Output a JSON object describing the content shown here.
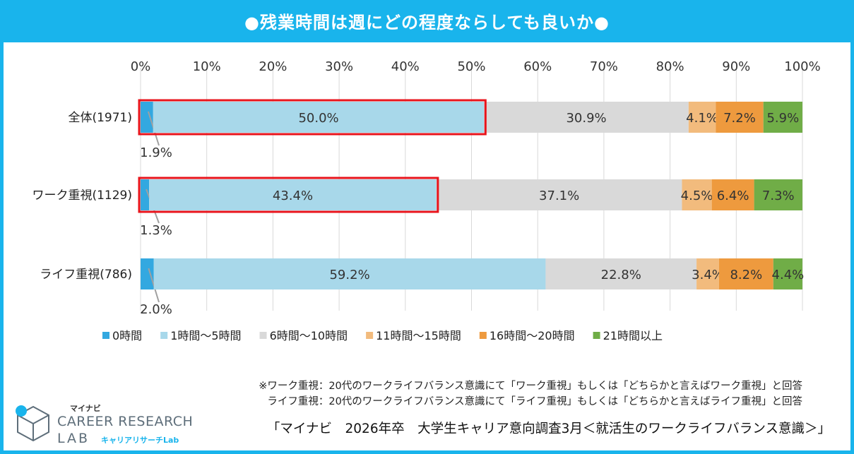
{
  "title": "●残業時間は週にどの程度ならしても良いか●",
  "chart_data": {
    "type": "bar",
    "orientation": "horizontal",
    "stacked": "percent",
    "categories": [
      "全体(1971)",
      "ワーク重視(1129)",
      "ライフ重視(786)"
    ],
    "series": [
      {
        "name": "0時間",
        "values": [
          1.9,
          1.3,
          2.0
        ],
        "color": "#33a8e0"
      },
      {
        "name": "1時間～5時間",
        "values": [
          50.0,
          43.4,
          59.2
        ],
        "color": "#a8d8ea"
      },
      {
        "name": "6時間～10時間",
        "values": [
          30.9,
          37.1,
          22.8
        ],
        "color": "#d9d9d9"
      },
      {
        "name": "11時間～15時間",
        "values": [
          4.1,
          4.5,
          3.4
        ],
        "color": "#f2bb7d"
      },
      {
        "name": "16時間～20時間",
        "values": [
          7.2,
          6.4,
          8.2
        ],
        "color": "#ee9a3e"
      },
      {
        "name": "21時間以上",
        "values": [
          5.9,
          7.3,
          4.4
        ],
        "color": "#70ad47"
      }
    ],
    "xticks": [
      "0%",
      "10%",
      "20%",
      "30%",
      "40%",
      "50%",
      "60%",
      "70%",
      "80%",
      "90%",
      "100%"
    ],
    "xlim": [
      0,
      100
    ],
    "grid": true,
    "legend_position": "bottom",
    "highlight_color": "#e8141c",
    "highlight": [
      {
        "row": 0,
        "series_from": 0,
        "series_to": 1
      },
      {
        "row": 1,
        "series_from": 0,
        "series_to": 1
      }
    ]
  },
  "notes": [
    "※ワーク重視：20代のワークライフバランス意識にて「ワーク重視」もしくは「どちらかと言えばワーク重視」と回答",
    "ライフ重視：20代のワークライフバランス意識にて「ライフ重視」もしくは「どちらかと言えばライフ重視」と回答"
  ],
  "source": "「マイナビ　2026年卒　大学生キャリア意向調査3月＜就活生のワークライフバランス意識＞」",
  "logo": {
    "small": "マイナビ",
    "main": "CAREER RESEARCH",
    "lab": "LAB",
    "sub": "キャリアリサーチLab"
  }
}
